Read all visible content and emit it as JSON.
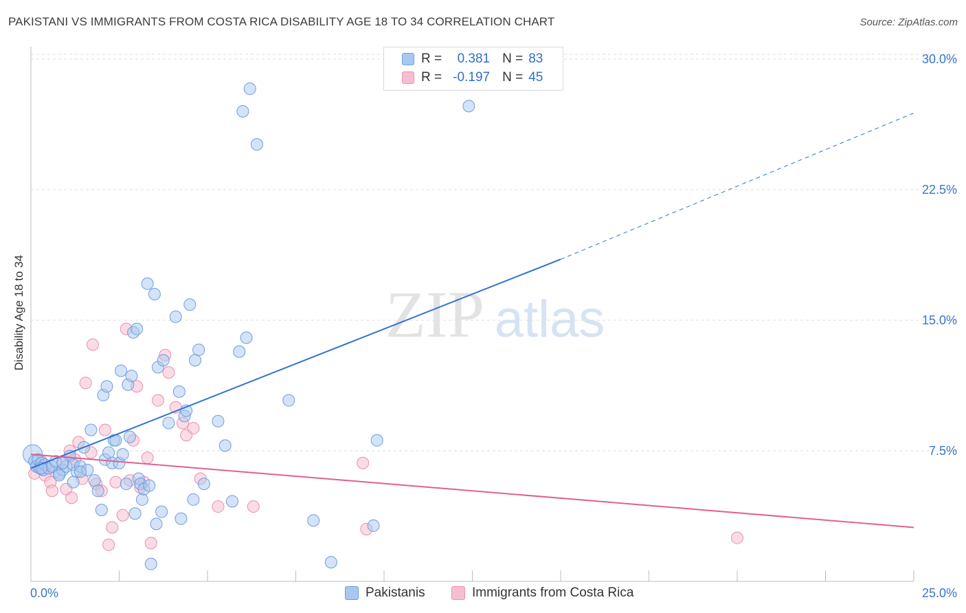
{
  "title": "PAKISTANI VS IMMIGRANTS FROM COSTA RICA DISABILITY AGE 18 TO 34 CORRELATION CHART",
  "source": "Source: ZipAtlas.com",
  "watermark": {
    "zip": "ZIP",
    "atlas": "atlas"
  },
  "legend": {
    "r_label": "R =",
    "n_label": "N =",
    "rows": [
      {
        "r": "0.381",
        "n": "83"
      },
      {
        "r": "-0.197",
        "n": "45"
      }
    ]
  },
  "colors": {
    "blue_fill": "#a9c8f0",
    "blue_stroke": "#6b9ee0",
    "blue_line": "#2e72d2",
    "pink_fill": "#f6bfd0",
    "pink_stroke": "#ea8fab",
    "pink_line": "#e0608e",
    "axis_text": "#3a75c9"
  },
  "chart_data": {
    "type": "scatter",
    "xlabel": "",
    "ylabel": "Disability Age 18 to 34",
    "xlim": [
      0,
      25
    ],
    "ylim": [
      0,
      30
    ],
    "x_tick_labels": [
      "0.0%",
      "25.0%"
    ],
    "y_ticks": [
      7.5,
      15.0,
      22.5,
      30.0
    ],
    "y_tick_labels": [
      "7.5%",
      "15.0%",
      "22.5%",
      "30.0%"
    ],
    "grid": "horizontal dashed",
    "legend_position": "top-center",
    "series": [
      {
        "name": "Pakistanis",
        "color": "#6b9ee0",
        "points": [
          [
            0.05,
            7.3
          ],
          [
            0.1,
            6.9
          ],
          [
            0.15,
            6.6
          ],
          [
            0.2,
            7.0
          ],
          [
            0.25,
            6.5
          ],
          [
            0.3,
            6.8
          ],
          [
            0.35,
            6.4
          ],
          [
            0.4,
            6.7
          ],
          [
            0.5,
            6.5
          ],
          [
            0.6,
            6.6
          ],
          [
            0.7,
            6.9
          ],
          [
            0.8,
            6.2
          ],
          [
            0.9,
            6.4
          ],
          [
            1.0,
            6.6
          ],
          [
            1.1,
            7.2
          ],
          [
            1.2,
            6.7
          ],
          [
            1.3,
            6.3
          ],
          [
            1.4,
            6.6
          ],
          [
            1.5,
            7.7
          ],
          [
            1.6,
            6.4
          ],
          [
            1.7,
            8.7
          ],
          [
            1.8,
            5.8
          ],
          [
            1.9,
            5.2
          ],
          [
            2.0,
            4.1
          ],
          [
            2.05,
            10.7
          ],
          [
            2.1,
            7.0
          ],
          [
            2.2,
            7.4
          ],
          [
            2.3,
            6.8
          ],
          [
            2.35,
            8.1
          ],
          [
            2.4,
            8.1
          ],
          [
            2.5,
            6.8
          ],
          [
            2.55,
            12.1
          ],
          [
            2.6,
            7.3
          ],
          [
            2.7,
            5.6
          ],
          [
            2.75,
            11.3
          ],
          [
            2.8,
            8.3
          ],
          [
            2.85,
            11.8
          ],
          [
            2.9,
            14.3
          ],
          [
            2.95,
            3.9
          ],
          [
            3.0,
            14.5
          ],
          [
            3.05,
            5.9
          ],
          [
            3.1,
            5.6
          ],
          [
            3.15,
            4.7
          ],
          [
            3.2,
            5.3
          ],
          [
            3.3,
            17.1
          ],
          [
            3.4,
            1.0
          ],
          [
            3.5,
            16.5
          ],
          [
            3.55,
            3.3
          ],
          [
            3.6,
            12.3
          ],
          [
            3.7,
            4.0
          ],
          [
            3.75,
            12.7
          ],
          [
            3.9,
            9.1
          ],
          [
            4.1,
            15.2
          ],
          [
            4.2,
            10.9
          ],
          [
            4.25,
            3.6
          ],
          [
            4.35,
            9.5
          ],
          [
            4.4,
            9.8
          ],
          [
            4.5,
            15.9
          ],
          [
            4.6,
            4.7
          ],
          [
            4.65,
            12.7
          ],
          [
            4.9,
            5.6
          ],
          [
            5.3,
            9.2
          ],
          [
            5.5,
            7.8
          ],
          [
            5.7,
            4.6
          ],
          [
            5.9,
            13.2
          ],
          [
            6.1,
            14.0
          ],
          [
            6.0,
            27.0
          ],
          [
            6.2,
            28.3
          ],
          [
            6.4,
            25.1
          ],
          [
            7.3,
            10.4
          ],
          [
            8.0,
            3.5
          ],
          [
            8.5,
            1.1
          ],
          [
            9.7,
            3.2
          ],
          [
            9.8,
            8.1
          ],
          [
            12.4,
            27.3
          ],
          [
            0.8,
            6.1
          ],
          [
            1.2,
            5.7
          ],
          [
            1.4,
            6.3
          ],
          [
            0.3,
            6.5
          ],
          [
            0.9,
            6.8
          ],
          [
            2.15,
            11.2
          ],
          [
            3.35,
            5.5
          ],
          [
            4.75,
            13.3
          ]
        ]
      },
      {
        "name": "Immigrants from Costa Rica",
        "color": "#ea8fab",
        "points": [
          [
            0.1,
            6.2
          ],
          [
            0.2,
            6.6
          ],
          [
            0.3,
            6.9
          ],
          [
            0.35,
            6.4
          ],
          [
            0.4,
            6.1
          ],
          [
            0.5,
            6.5
          ],
          [
            0.55,
            5.7
          ],
          [
            0.6,
            5.2
          ],
          [
            0.7,
            6.3
          ],
          [
            0.9,
            6.9
          ],
          [
            1.0,
            5.3
          ],
          [
            1.1,
            7.5
          ],
          [
            1.15,
            4.8
          ],
          [
            1.25,
            7.0
          ],
          [
            1.35,
            8.0
          ],
          [
            1.45,
            5.9
          ],
          [
            1.55,
            11.4
          ],
          [
            1.7,
            7.4
          ],
          [
            1.75,
            13.6
          ],
          [
            1.85,
            5.6
          ],
          [
            2.0,
            5.2
          ],
          [
            2.1,
            8.7
          ],
          [
            2.2,
            2.1
          ],
          [
            2.3,
            3.1
          ],
          [
            2.4,
            5.7
          ],
          [
            2.6,
            3.8
          ],
          [
            2.7,
            14.5
          ],
          [
            2.8,
            5.8
          ],
          [
            2.9,
            8.1
          ],
          [
            3.0,
            11.2
          ],
          [
            3.1,
            5.4
          ],
          [
            3.2,
            5.7
          ],
          [
            3.3,
            7.1
          ],
          [
            3.4,
            2.2
          ],
          [
            3.6,
            10.4
          ],
          [
            3.8,
            13.0
          ],
          [
            3.9,
            12.0
          ],
          [
            4.1,
            10.0
          ],
          [
            4.3,
            9.1
          ],
          [
            4.4,
            8.4
          ],
          [
            4.6,
            8.8
          ],
          [
            4.8,
            5.9
          ],
          [
            5.3,
            4.3
          ],
          [
            6.3,
            4.3
          ],
          [
            9.4,
            6.8
          ]
        ],
        "extra_points": [
          [
            9.5,
            3.0
          ],
          [
            20.0,
            2.5
          ]
        ]
      }
    ],
    "trend_lines": [
      {
        "series": "Pakistanis",
        "solid": [
          [
            0,
            6.5
          ],
          [
            15,
            18.5
          ]
        ],
        "dashed": [
          [
            15,
            18.5
          ],
          [
            25,
            26.9
          ]
        ]
      },
      {
        "series": "Immigrants from Costa Rica",
        "solid": [
          [
            0,
            7.3
          ],
          [
            25,
            3.1
          ]
        ]
      }
    ]
  },
  "bottom_legend": {
    "items": [
      "Pakistanis",
      "Immigrants from Costa Rica"
    ]
  }
}
